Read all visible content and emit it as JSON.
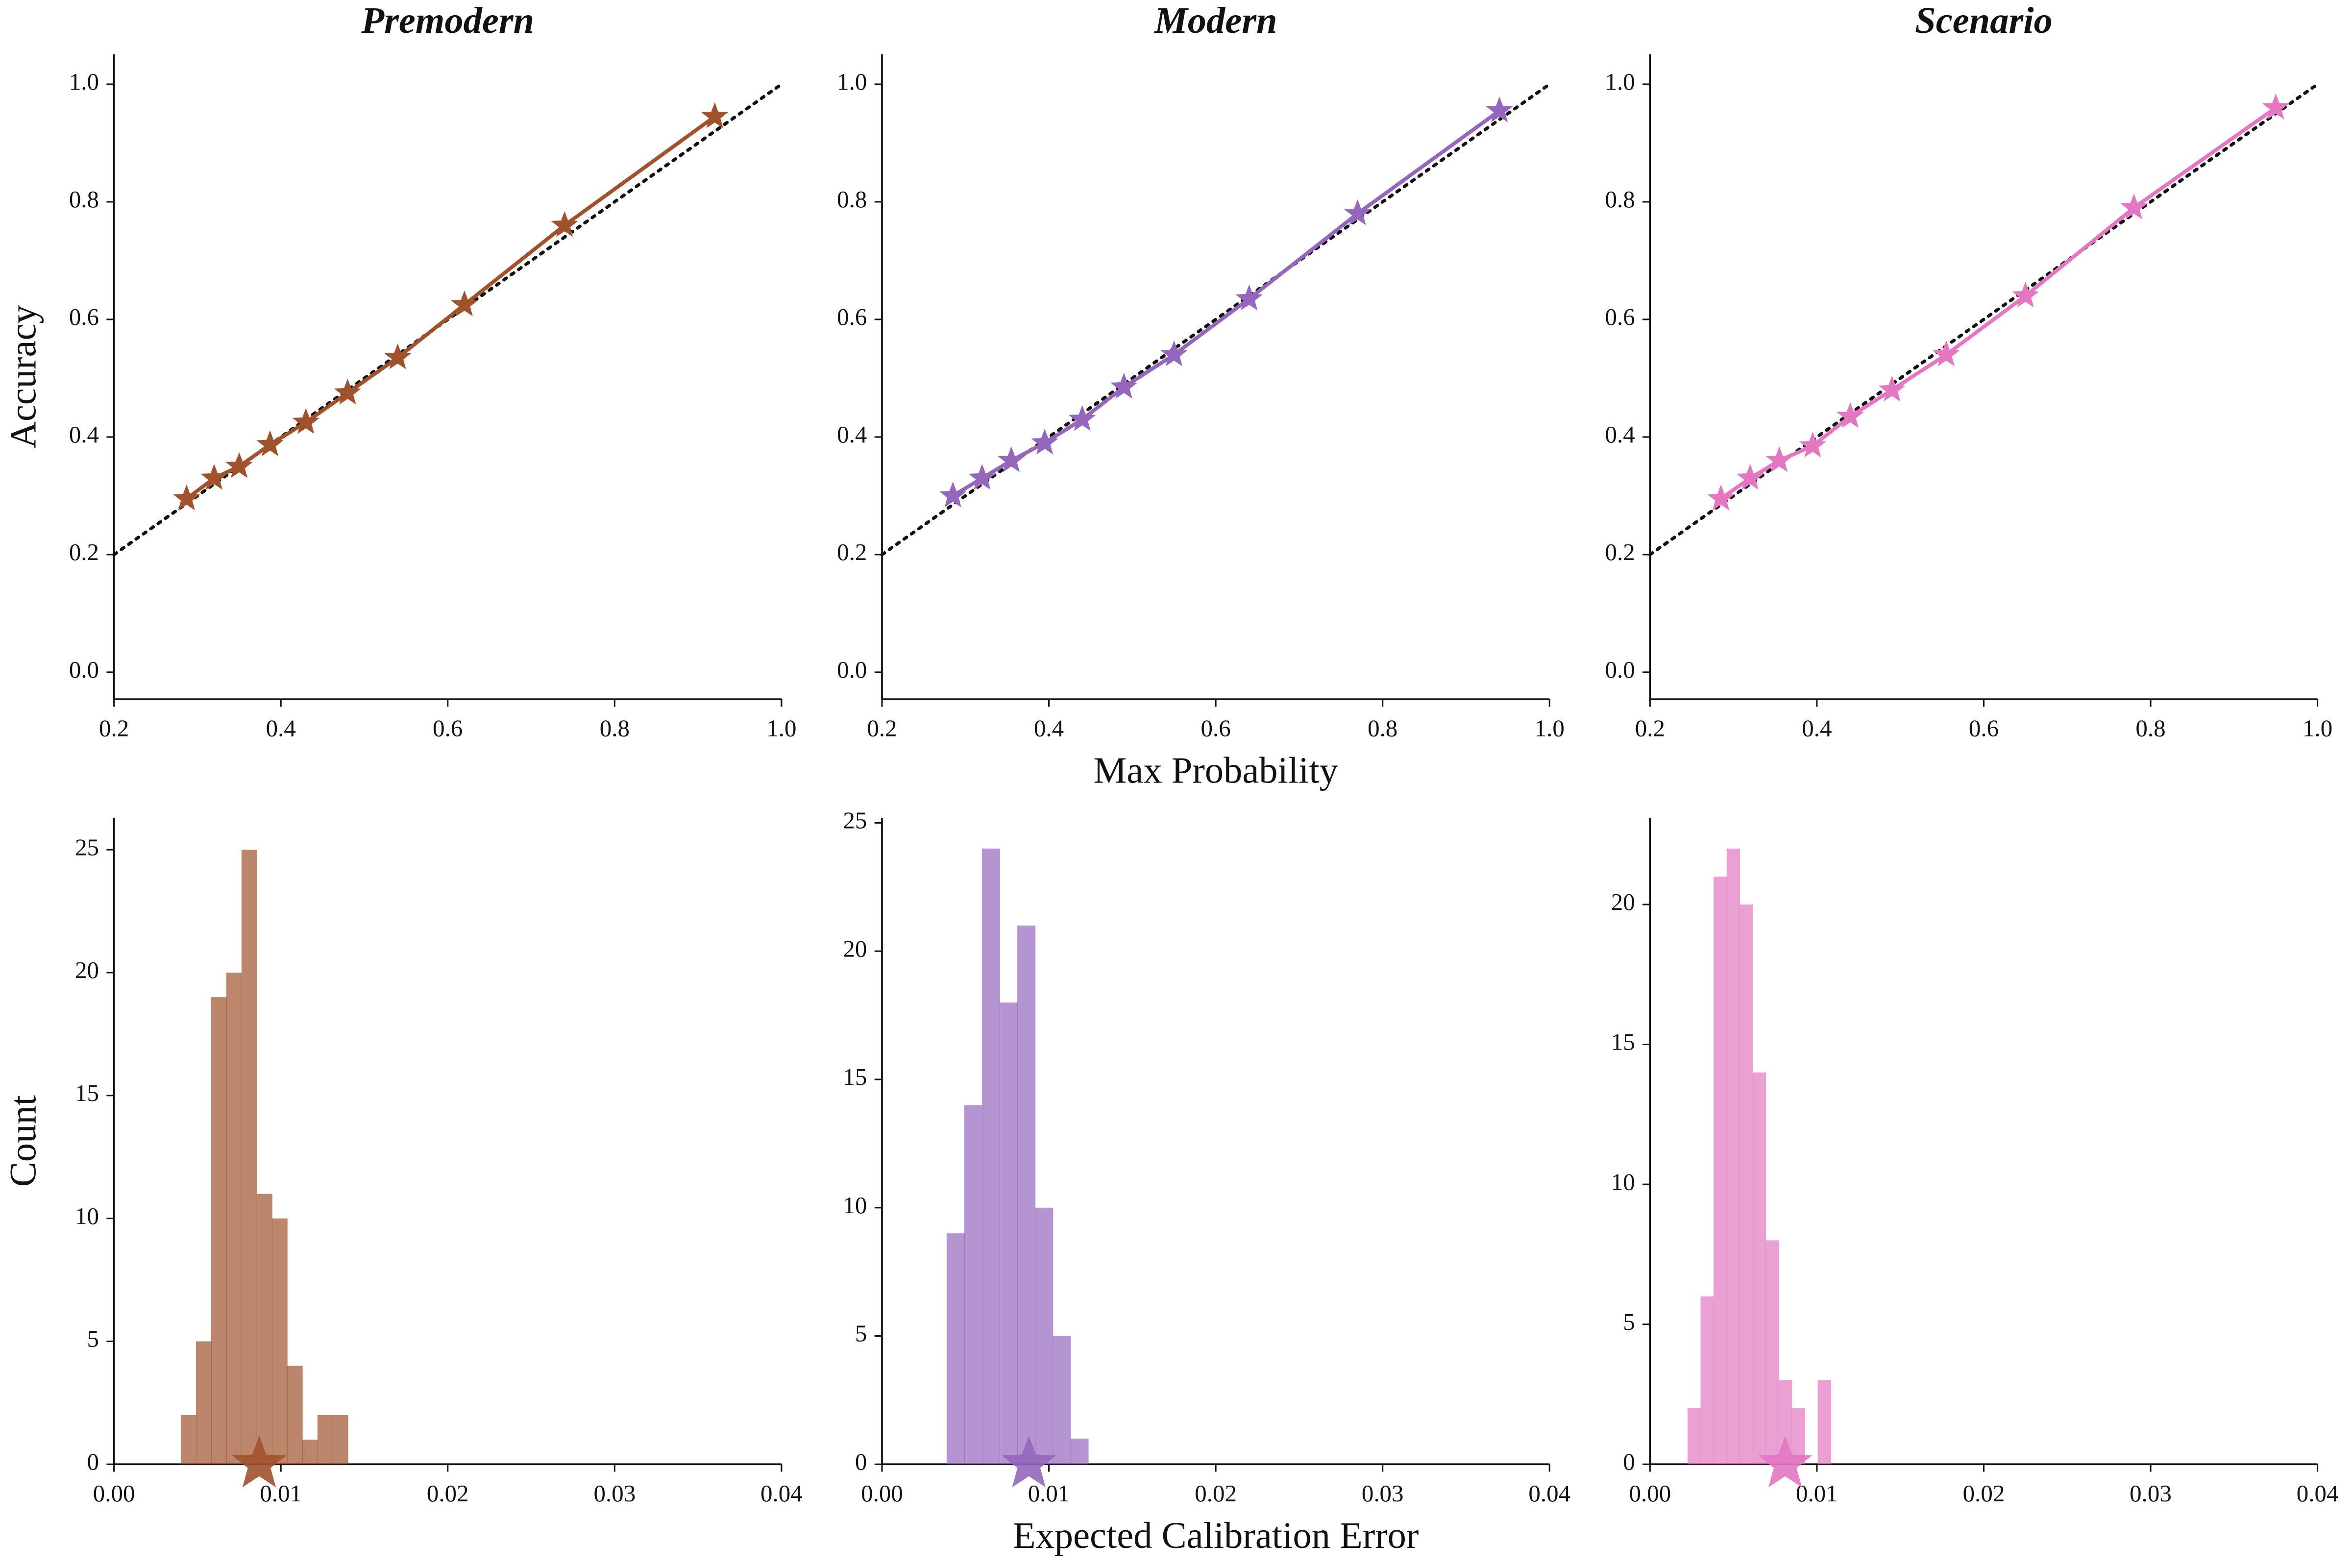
{
  "chart_data": [
    {
      "type": "line",
      "title": "Premodern",
      "ylabel": "Accuracy",
      "color": "#a0522d",
      "x": [
        0.287,
        0.32,
        0.35,
        0.387,
        0.43,
        0.48,
        0.54,
        0.62,
        0.74,
        0.92
      ],
      "values": [
        0.295,
        0.33,
        0.35,
        0.387,
        0.425,
        0.475,
        0.535,
        0.625,
        0.76,
        0.945
      ],
      "xlim": [
        0.2,
        1.0
      ],
      "ylim": [
        -0.046,
        1.051
      ],
      "xticks": [
        0.2,
        0.4,
        0.6,
        0.8,
        {
          "value": 1.0,
          "label": "1.0"
        }
      ],
      "yticks": [
        {
          "value": 0,
          "label": "0.0"
        },
        0.2,
        0.4,
        0.6,
        0.8,
        {
          "value": 1.0,
          "label": "1.0"
        }
      ],
      "reference_line": true
    },
    {
      "type": "line",
      "title": "Modern",
      "xlabel": "Max Probability",
      "color": "#9467bd",
      "x": [
        0.285,
        0.32,
        0.355,
        0.395,
        0.44,
        0.49,
        0.55,
        0.64,
        0.77,
        0.94
      ],
      "values": [
        0.3,
        0.33,
        0.36,
        0.39,
        0.43,
        0.485,
        0.54,
        0.635,
        0.78,
        0.955
      ],
      "xlim": [
        0.2,
        1.0
      ],
      "ylim": [
        -0.046,
        1.051
      ],
      "xticks": [
        0.2,
        0.4,
        0.6,
        0.8,
        {
          "value": 1.0,
          "label": "1.0"
        }
      ],
      "yticks": [
        {
          "value": 0,
          "label": "0.0"
        },
        0.2,
        0.4,
        0.6,
        0.8,
        {
          "value": 1.0,
          "label": "1.0"
        }
      ],
      "reference_line": true
    },
    {
      "type": "line",
      "title": "Scenario",
      "color": "#e377c2",
      "x": [
        0.285,
        0.32,
        0.355,
        0.395,
        0.44,
        0.49,
        0.555,
        0.65,
        0.78,
        0.95
      ],
      "values": [
        0.295,
        0.33,
        0.36,
        0.385,
        0.435,
        0.48,
        0.54,
        0.64,
        0.79,
        0.96
      ],
      "xlim": [
        0.2,
        1.0
      ],
      "ylim": [
        -0.046,
        1.051
      ],
      "xticks": [
        0.2,
        0.4,
        0.6,
        0.8,
        {
          "value": 1.0,
          "label": "1.0"
        }
      ],
      "yticks": [
        {
          "value": 0,
          "label": "0.0"
        },
        0.2,
        0.4,
        0.6,
        0.8,
        {
          "value": 1.0,
          "label": "1.0"
        }
      ],
      "reference_line": true
    },
    {
      "type": "histogram",
      "ylabel": "Count",
      "color": "#a0522d",
      "bins": [
        0.004,
        0.00491,
        0.00582,
        0.00673,
        0.00764,
        0.00855,
        0.00946,
        0.01037,
        0.01128,
        0.01219,
        0.0131,
        0.01401
      ],
      "counts": [
        2,
        5,
        19,
        20,
        25,
        11,
        10,
        4,
        1,
        2,
        2
      ],
      "marker": 0.0087,
      "xlim": [
        0,
        0.04
      ],
      "ylim": [
        0,
        26.3
      ],
      "xticks": [
        {
          "value": 0,
          "label": "0.00"
        },
        {
          "value": 0.01,
          "label": "0.01"
        },
        {
          "value": 0.02,
          "label": "0.02"
        },
        {
          "value": 0.03,
          "label": "0.03"
        },
        {
          "value": 0.04,
          "label": "0.04"
        }
      ],
      "yticks": [
        0,
        5,
        10,
        15,
        20,
        25
      ]
    },
    {
      "type": "histogram",
      "xlabel": "Expected Calibration Error",
      "color": "#9467bd",
      "bins": [
        0.00387,
        0.00493,
        0.00599,
        0.00705,
        0.00811,
        0.00917,
        0.01023,
        0.01129,
        0.01235
      ],
      "counts": [
        9,
        14,
        24,
        18,
        21,
        10,
        5,
        1
      ],
      "marker": 0.0088,
      "xlim": [
        0,
        0.04
      ],
      "ylim": [
        0,
        25.2
      ],
      "xticks": [
        {
          "value": 0,
          "label": "0.00"
        },
        {
          "value": 0.01,
          "label": "0.01"
        },
        {
          "value": 0.02,
          "label": "0.02"
        },
        {
          "value": 0.03,
          "label": "0.03"
        },
        {
          "value": 0.04,
          "label": "0.04"
        }
      ],
      "yticks": [
        0,
        5,
        10,
        15,
        20,
        25
      ]
    },
    {
      "type": "histogram",
      "color": "#e377c2",
      "bins": [
        0.00225,
        0.00303,
        0.00381,
        0.00459,
        0.00537,
        0.00615,
        0.00693,
        0.00771,
        0.00849,
        0.00927,
        0.01005,
        0.01083
      ],
      "counts": [
        2,
        6,
        21,
        22,
        20,
        14,
        8,
        3,
        2,
        0,
        3
      ],
      "marker": 0.0081,
      "xlim": [
        0,
        0.04
      ],
      "ylim": [
        0,
        23.1
      ],
      "xticks": [
        {
          "value": 0,
          "label": "0.00"
        },
        {
          "value": 0.01,
          "label": "0.01"
        },
        {
          "value": 0.02,
          "label": "0.02"
        },
        {
          "value": 0.03,
          "label": "0.03"
        },
        {
          "value": 0.04,
          "label": "0.04"
        }
      ],
      "yticks": [
        0,
        5,
        10,
        15,
        20
      ]
    }
  ]
}
